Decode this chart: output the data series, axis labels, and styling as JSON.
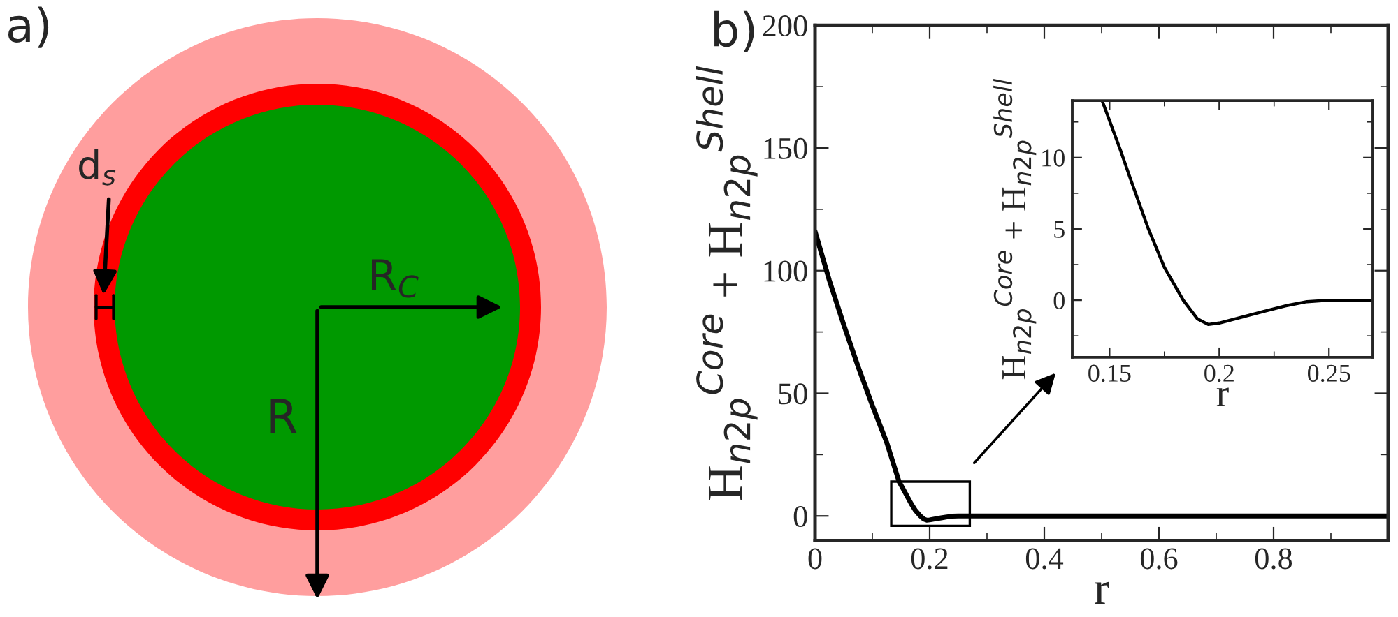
{
  "chart_data": [
    {
      "type": "other",
      "annotations": [
        "a)",
        "d$_{s}$",
        "R$_{C}$",
        "R"
      ]
    },
    {
      "type": "line",
      "title": "b)",
      "xlabel": "r",
      "ylabel": "H$_{n2p}$$^{Core}$ + H$_{n2p}$$^{Shell}$",
      "xlim": [
        0,
        1
      ],
      "ylim": [
        -10,
        200
      ],
      "xticks": [
        0,
        0.2,
        0.4,
        0.6,
        0.8
      ],
      "yticks": [
        0,
        50,
        100,
        150,
        200
      ],
      "series": [
        {
          "color": "#000000",
          "x": [
            0,
            0.025,
            0.05,
            0.075,
            0.1,
            0.125,
            0.1466,
            0.155,
            0.1677,
            0.175,
            0.1836,
            0.19,
            0.195,
            0.2,
            0.21,
            0.22,
            0.23,
            0.24,
            0.25,
            0.4,
            0.6,
            0.8,
            1.0
          ],
          "values": [
            116,
            96,
            78,
            61,
            45,
            30,
            14,
            10.5,
            5,
            2.3,
            0,
            -1.3,
            -1.7,
            -1.6,
            -1.2,
            -0.8,
            -0.4,
            -0.1,
            0,
            0,
            0,
            0,
            0
          ]
        }
      ]
    },
    {
      "type": "line",
      "xlabel": "r",
      "ylabel": "H$_{n2p}$$^{Core}$ + H$_{n2p}$$^{Shell}$",
      "xlim": [
        0.133,
        0.27
      ],
      "ylim": [
        -4,
        14
      ],
      "xticks": [
        0.15,
        0.2,
        0.25
      ],
      "yticks": [
        0,
        5,
        10
      ],
      "series": [
        {
          "color": "#000000",
          "x": [
            0.1466,
            0.155,
            0.16,
            0.1677,
            0.175,
            0.1836,
            0.19,
            0.195,
            0.2,
            0.21,
            0.22,
            0.23,
            0.24,
            0.25,
            0.27
          ],
          "values": [
            14,
            10.5,
            8.3,
            5,
            2.3,
            0,
            -1.3,
            -1.7,
            -1.6,
            -1.2,
            -0.8,
            -0.4,
            -0.1,
            0,
            0
          ]
        }
      ]
    }
  ]
}
